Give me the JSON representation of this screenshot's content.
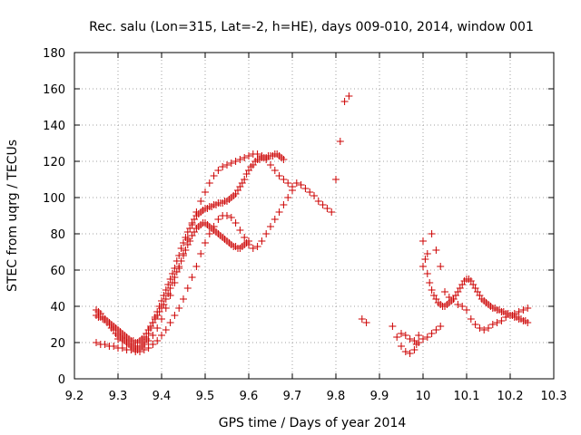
{
  "chart_data": {
    "type": "scatter",
    "title": "Rec. salu (Lon=315, Lat=-2, h=HE), days 009-010, 2014, window 001",
    "xlabel": "GPS time / Days of year 2014",
    "ylabel": "STEC from uqrg / TECUs",
    "xlim": [
      9.2,
      10.3
    ],
    "ylim": [
      0,
      180
    ],
    "xticks": [
      9.2,
      9.3,
      9.4,
      9.5,
      9.6,
      9.7,
      9.8,
      9.9,
      10.0,
      10.1,
      10.2,
      10.3
    ],
    "xtick_labels": [
      "9.2",
      "9.3",
      "9.4",
      "9.5",
      "9.6",
      "9.7",
      "9.8",
      "9.9",
      "10",
      "10.1",
      "10.2",
      "10.3"
    ],
    "yticks": [
      0,
      20,
      40,
      60,
      80,
      100,
      120,
      140,
      160,
      180
    ],
    "ytick_labels": [
      "0",
      "20",
      "40",
      "60",
      "80",
      "100",
      "120",
      "140",
      "160",
      "180"
    ],
    "grid": true,
    "marker": "+",
    "color": "#cc0000",
    "series": [
      {
        "name": "STEC",
        "x": [
          9.25,
          9.255,
          9.26,
          9.265,
          9.27,
          9.275,
          9.28,
          9.285,
          9.29,
          9.295,
          9.3,
          9.305,
          9.31,
          9.315,
          9.32,
          9.325,
          9.33,
          9.335,
          9.34,
          9.345,
          9.35,
          9.355,
          9.36,
          9.365,
          9.37,
          9.375,
          9.38,
          9.385,
          9.39,
          9.395,
          9.4,
          9.405,
          9.41,
          9.415,
          9.42,
          9.425,
          9.43,
          9.435,
          9.44,
          9.445,
          9.45,
          9.455,
          9.46,
          9.465,
          9.47,
          9.475,
          9.48,
          9.485,
          9.49,
          9.495,
          9.5,
          9.505,
          9.51,
          9.515,
          9.52,
          9.525,
          9.53,
          9.535,
          9.54,
          9.545,
          9.55,
          9.555,
          9.56,
          9.565,
          9.57,
          9.575,
          9.58,
          9.585,
          9.59,
          9.595,
          9.6,
          9.25,
          9.255,
          9.26,
          9.265,
          9.27,
          9.275,
          9.28,
          9.285,
          9.29,
          9.295,
          9.3,
          9.305,
          9.31,
          9.315,
          9.32,
          9.325,
          9.33,
          9.335,
          9.34,
          9.345,
          9.35,
          9.355,
          9.36,
          9.365,
          9.37,
          9.375,
          9.38,
          9.385,
          9.39,
          9.395,
          9.4,
          9.405,
          9.41,
          9.415,
          9.42,
          9.425,
          9.43,
          9.435,
          9.44,
          9.445,
          9.45,
          9.455,
          9.46,
          9.465,
          9.47,
          9.475,
          9.48,
          9.485,
          9.49,
          9.495,
          9.5,
          9.505,
          9.51,
          9.515,
          9.52,
          9.525,
          9.53,
          9.535,
          9.54,
          9.545,
          9.55,
          9.555,
          9.56,
          9.565,
          9.57,
          9.575,
          9.58,
          9.585,
          9.59,
          9.595,
          9.6,
          9.605,
          9.61,
          9.615,
          9.62,
          9.625,
          9.63,
          9.635,
          9.64,
          9.645,
          9.65,
          9.655,
          9.66,
          9.665,
          9.67,
          9.675,
          9.68,
          9.25,
          9.26,
          9.27,
          9.28,
          9.29,
          9.3,
          9.31,
          9.32,
          9.33,
          9.34,
          9.35,
          9.36,
          9.37,
          9.38,
          9.39,
          9.4,
          9.41,
          9.42,
          9.43,
          9.44,
          9.45,
          9.46,
          9.47,
          9.48,
          9.49,
          9.5,
          9.51,
          9.52,
          9.53,
          9.54,
          9.55,
          9.56,
          9.57,
          9.58,
          9.59,
          9.6,
          9.61,
          9.62,
          9.63,
          9.64,
          9.65,
          9.66,
          9.67,
          9.68,
          9.69,
          9.7,
          9.71,
          9.72,
          9.73,
          9.74,
          9.75,
          9.76,
          9.77,
          9.78,
          9.79,
          9.8,
          9.81,
          9.82,
          9.83,
          9.3,
          9.31,
          9.32,
          9.33,
          9.34,
          9.35,
          9.36,
          9.37,
          9.38,
          9.39,
          9.4,
          9.41,
          9.42,
          9.43,
          9.44,
          9.45,
          9.46,
          9.47,
          9.48,
          9.49,
          9.5,
          9.51,
          9.52,
          9.53,
          9.54,
          9.55,
          9.56,
          9.57,
          9.58,
          9.59,
          9.6,
          9.61,
          9.62,
          9.63,
          9.64,
          9.65,
          9.66,
          9.67,
          9.68,
          9.69,
          9.7,
          9.87,
          9.86,
          9.93,
          9.94,
          9.95,
          9.96,
          9.97,
          9.98,
          9.985,
          9.99,
          10.0,
          10.005,
          10.01,
          10.015,
          10.02,
          10.025,
          10.03,
          10.035,
          10.04,
          10.045,
          10.05,
          10.055,
          10.06,
          10.065,
          10.07,
          10.075,
          10.08,
          10.085,
          10.09,
          10.095,
          10.1,
          10.105,
          10.11,
          10.115,
          10.12,
          10.125,
          10.13,
          10.135,
          10.14,
          10.145,
          10.15,
          10.155,
          10.16,
          10.165,
          10.17,
          10.175,
          10.18,
          10.185,
          10.19,
          10.195,
          10.2,
          10.205,
          10.21,
          10.215,
          10.22,
          10.225,
          10.23,
          10.235,
          10.24,
          10.0,
          10.01,
          10.02,
          10.03,
          10.04,
          10.05,
          10.06,
          10.07,
          10.08,
          10.09,
          10.1,
          10.11,
          10.12,
          10.13,
          10.14,
          10.15,
          10.16,
          10.17,
          10.18,
          10.19,
          10.2,
          10.21,
          10.22,
          10.23,
          10.24,
          9.95,
          9.96,
          9.97,
          9.98,
          9.99,
          10.0,
          10.01,
          10.02,
          10.03,
          10.04
        ],
        "y": [
          35,
          34,
          34,
          33,
          33,
          32,
          31,
          30,
          29,
          28,
          27,
          26,
          25,
          24,
          23,
          22,
          21,
          21,
          20,
          20,
          21,
          22,
          23,
          25,
          27,
          29,
          31,
          33,
          35,
          37,
          39,
          41,
          44,
          47,
          50,
          53,
          56,
          59,
          62,
          65,
          68,
          71,
          74,
          76,
          79,
          81,
          83,
          84,
          85,
          86,
          86,
          85,
          84,
          83,
          82,
          81,
          80,
          79,
          78,
          77,
          76,
          75,
          74,
          73,
          73,
          72,
          72,
          73,
          74,
          75,
          76,
          38,
          37,
          36,
          34,
          33,
          31,
          30,
          28,
          27,
          25,
          24,
          23,
          22,
          21,
          20,
          19,
          18,
          17,
          16,
          16,
          17,
          18,
          20,
          22,
          25,
          28,
          31,
          34,
          37,
          40,
          43,
          46,
          49,
          52,
          55,
          58,
          61,
          65,
          68,
          72,
          75,
          78,
          81,
          83,
          86,
          88,
          90,
          91,
          92,
          93,
          94,
          94,
          95,
          95,
          96,
          96,
          97,
          97,
          97,
          98,
          98,
          99,
          100,
          101,
          102,
          104,
          106,
          108,
          110,
          113,
          115,
          117,
          118,
          120,
          121,
          121,
          122,
          122,
          122,
          123,
          123,
          123,
          124,
          124,
          123,
          122,
          121,
          20,
          19,
          19,
          18,
          18,
          17,
          17,
          16,
          16,
          15,
          15,
          16,
          17,
          19,
          21,
          24,
          27,
          31,
          35,
          39,
          44,
          50,
          56,
          62,
          69,
          75,
          80,
          84,
          88,
          90,
          90,
          89,
          86,
          82,
          78,
          74,
          72,
          73,
          76,
          80,
          84,
          88,
          92,
          96,
          100,
          104,
          108,
          107,
          105,
          103,
          101,
          98,
          96,
          94,
          92,
          110,
          131,
          153,
          156,
          22,
          21,
          20,
          19,
          18,
          18,
          19,
          21,
          24,
          28,
          33,
          39,
          46,
          53,
          61,
          69,
          77,
          85,
          92,
          98,
          103,
          108,
          112,
          115,
          117,
          118,
          119,
          120,
          121,
          122,
          123,
          124,
          124,
          123,
          121,
          118,
          115,
          112,
          110,
          108,
          106,
          31,
          33,
          29,
          23,
          18,
          15,
          14,
          16,
          19,
          24,
          62,
          66,
          58,
          53,
          49,
          46,
          44,
          42,
          41,
          40,
          40,
          41,
          42,
          43,
          44,
          46,
          48,
          50,
          52,
          54,
          55,
          55,
          54,
          52,
          50,
          48,
          46,
          44,
          43,
          42,
          41,
          40,
          39,
          39,
          38,
          38,
          37,
          37,
          36,
          36,
          35,
          35,
          34,
          34,
          33,
          33,
          32,
          32,
          31,
          76,
          69,
          80,
          71,
          62,
          48,
          45,
          44,
          41,
          40,
          38,
          33,
          30,
          28,
          27,
          28,
          30,
          31,
          32,
          34,
          35,
          36,
          37,
          38,
          39,
          25,
          24,
          22,
          21,
          20,
          22,
          23,
          25,
          27,
          29
        ]
      }
    ]
  }
}
